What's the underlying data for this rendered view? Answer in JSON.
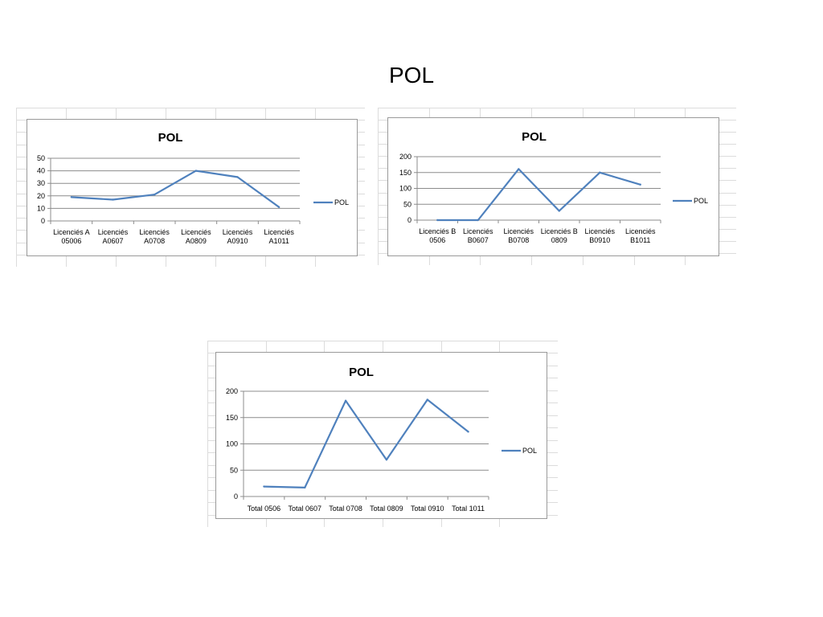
{
  "slide": {
    "title": "POL"
  },
  "chart_data": [
    {
      "type": "line",
      "title": "POL",
      "categories": [
        "Licenciés A 05006",
        "Licenciés A0607",
        "Licenciés A0708",
        "Licenciés A0809",
        "Licenciés A0910",
        "Licenciés A1011"
      ],
      "category_lines": [
        [
          "Licenciés A",
          "05006"
        ],
        [
          "Licenciés",
          "A0607"
        ],
        [
          "Licenciés",
          "A0708"
        ],
        [
          "Licenciés",
          "A0809"
        ],
        [
          "Licenciés",
          "A0910"
        ],
        [
          "Licenciés",
          "A1011"
        ]
      ],
      "series": [
        {
          "name": "POL",
          "values": [
            19,
            17,
            21,
            40,
            35,
            11
          ],
          "color": "#4f81bd"
        }
      ],
      "ylim": [
        0,
        50
      ],
      "yticks": [
        0,
        10,
        20,
        30,
        40,
        50
      ],
      "grid": true,
      "legend": "right"
    },
    {
      "type": "line",
      "title": "POL",
      "categories": [
        "Licenciés B 0506",
        "Licenciés B0607",
        "Licenciés B0708",
        "Licenciés B 0809",
        "Licenciés B0910",
        "Licenciés B1011"
      ],
      "category_lines": [
        [
          "Licenciés B",
          "0506"
        ],
        [
          "Licenciés",
          "B0607"
        ],
        [
          "Licenciés",
          "B0708"
        ],
        [
          "Licenciés B",
          "0809"
        ],
        [
          "Licenciés",
          "B0910"
        ],
        [
          "Licenciés",
          "B1011"
        ]
      ],
      "series": [
        {
          "name": "POL",
          "values": [
            0,
            0,
            161,
            29,
            150,
            112
          ],
          "color": "#4f81bd"
        }
      ],
      "ylim": [
        0,
        200
      ],
      "yticks": [
        0,
        50,
        100,
        150,
        200
      ],
      "grid": true,
      "legend": "right"
    },
    {
      "type": "line",
      "title": "POL",
      "categories": [
        "Total 0506",
        "Total 0607",
        "Total 0708",
        "Total 0809",
        "Total 0910",
        "Total 1011"
      ],
      "category_lines": [
        [
          "Total 0506"
        ],
        [
          "Total 0607"
        ],
        [
          "Total 0708"
        ],
        [
          "Total 0809"
        ],
        [
          "Total 0910"
        ],
        [
          "Total 1011"
        ]
      ],
      "series": [
        {
          "name": "POL",
          "values": [
            19,
            17,
            182,
            70,
            184,
            123
          ],
          "color": "#4f81bd"
        }
      ],
      "ylim": [
        0,
        200
      ],
      "yticks": [
        0,
        50,
        100,
        150,
        200
      ],
      "grid": true,
      "legend": "right"
    }
  ]
}
